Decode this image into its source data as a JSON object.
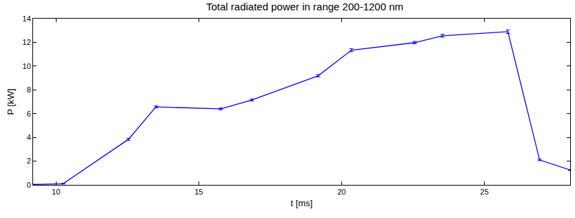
{
  "chart_data": {
    "type": "line",
    "title": "Total radiated power in range 200-1200 nm",
    "x_label": "t [ms]",
    "y_label": "P [kW]",
    "x": [
      9.2,
      10.25,
      12.54,
      13.5,
      15.77,
      16.86,
      19.18,
      20.34,
      22.56,
      23.53,
      25.82,
      26.93,
      28.0
    ],
    "values": [
      0.03,
      0.1,
      3.84,
      6.57,
      6.4,
      7.15,
      9.19,
      11.34,
      11.98,
      12.56,
      12.9,
      2.1,
      1.25
    ],
    "error": [
      0.02,
      0.03,
      0.08,
      0.08,
      0.08,
      0.08,
      0.1,
      0.12,
      0.1,
      0.12,
      0.15,
      0.06,
      0.05
    ],
    "color": "#0000ff",
    "xlim": [
      9.2,
      28
    ],
    "xticks": [
      10,
      15,
      20,
      25
    ],
    "ylim": [
      0,
      14
    ],
    "yticks": [
      0,
      2,
      4,
      6,
      8,
      10,
      12,
      14
    ],
    "grid": false
  }
}
